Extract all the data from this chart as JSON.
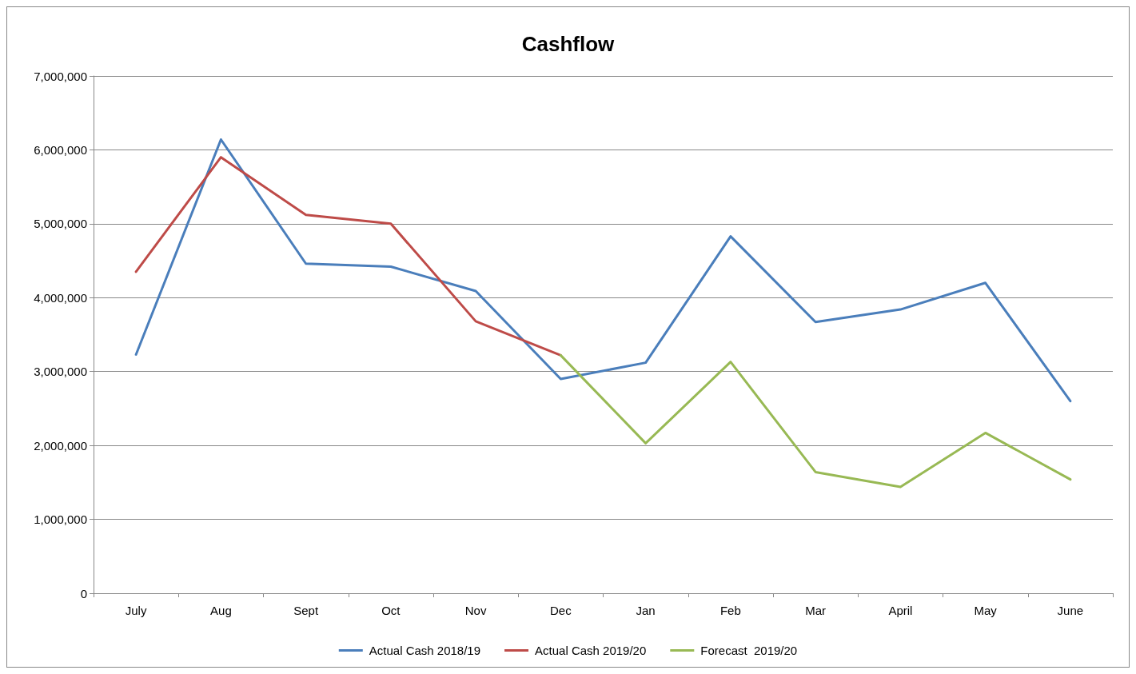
{
  "chart_data": {
    "type": "line",
    "title": "Cashflow",
    "categories": [
      "July",
      "Aug",
      "Sept",
      "Oct",
      "Nov",
      "Dec",
      "Jan",
      "Feb",
      "Mar",
      "April",
      "May",
      "June"
    ],
    "series": [
      {
        "name": "Actual Cash 2018/19",
        "color": "#4a7ebb",
        "values": [
          3230000,
          6140000,
          4460000,
          4420000,
          4090000,
          2900000,
          3120000,
          4830000,
          3670000,
          3840000,
          4200000,
          2600000
        ]
      },
      {
        "name": "Actual Cash 2019/20",
        "color": "#be4b48",
        "values": [
          4350000,
          5900000,
          5120000,
          5000000,
          3680000,
          3220000,
          null,
          null,
          null,
          null,
          null,
          null
        ]
      },
      {
        "name": "Forecast  2019/20",
        "color": "#98b954",
        "values": [
          null,
          null,
          null,
          null,
          null,
          3220000,
          2030000,
          3130000,
          1640000,
          1440000,
          2170000,
          1540000
        ]
      }
    ],
    "ylim": [
      0,
      7000000
    ],
    "yticks": [
      {
        "value": 0,
        "label": "0"
      },
      {
        "value": 1000000,
        "label": "1,000,000"
      },
      {
        "value": 2000000,
        "label": "2,000,000"
      },
      {
        "value": 3000000,
        "label": "3,000,000"
      },
      {
        "value": 4000000,
        "label": "4,000,000"
      },
      {
        "value": 5000000,
        "label": "5,000,000"
      },
      {
        "value": 6000000,
        "label": "6,000,000"
      },
      {
        "value": 7000000,
        "label": "7,000,000"
      }
    ],
    "grid": "y",
    "legend": "bottom",
    "marker": "none",
    "line_style": "solid"
  }
}
